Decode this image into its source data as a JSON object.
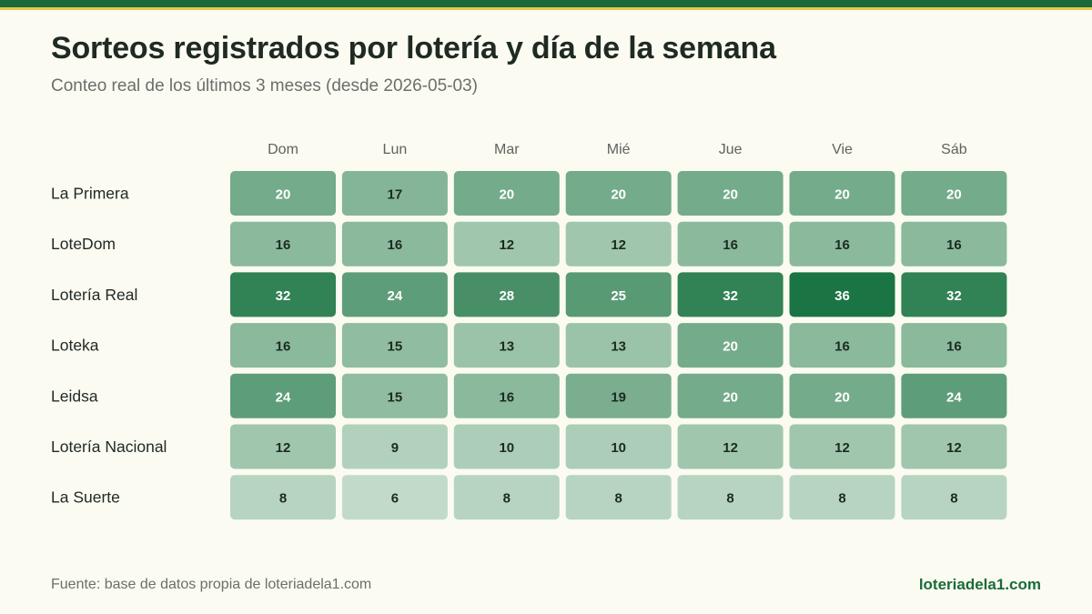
{
  "title": "Sorteos registrados por lotería y día de la semana",
  "subtitle": "Conteo real de los últimos 3 meses (desde 2026-05-03)",
  "footer": {
    "source": "Fuente: base de datos propia de loteriadela1.com",
    "brand": "loteriadela1.com"
  },
  "colors": {
    "brand": "#1b6b3a",
    "accent": "#e6c84a",
    "background": "#fbfbf2",
    "scale_low": "#c2dbc9",
    "scale_high": "#1b7443"
  },
  "chart_data": {
    "type": "heatmap",
    "x_categories": [
      "Dom",
      "Lun",
      "Mar",
      "Mié",
      "Jue",
      "Vie",
      "Sáb"
    ],
    "y_categories": [
      "La Primera",
      "LoteDom",
      "Lotería Real",
      "Loteka",
      "Leidsa",
      "Lotería Nacional",
      "La Suerte"
    ],
    "values": [
      [
        20,
        17,
        20,
        20,
        20,
        20,
        20
      ],
      [
        16,
        16,
        12,
        12,
        16,
        16,
        16
      ],
      [
        32,
        24,
        28,
        25,
        32,
        36,
        32
      ],
      [
        16,
        15,
        13,
        13,
        20,
        16,
        16
      ],
      [
        24,
        15,
        16,
        19,
        20,
        20,
        24
      ],
      [
        12,
        9,
        10,
        10,
        12,
        12,
        12
      ],
      [
        8,
        6,
        8,
        8,
        8,
        8,
        8
      ]
    ],
    "value_range": [
      6,
      36
    ],
    "title": "Sorteos registrados por lotería y día de la semana",
    "subtitle": "Conteo real de los últimos 3 meses (desde 2026-05-03)",
    "legend": "none"
  }
}
